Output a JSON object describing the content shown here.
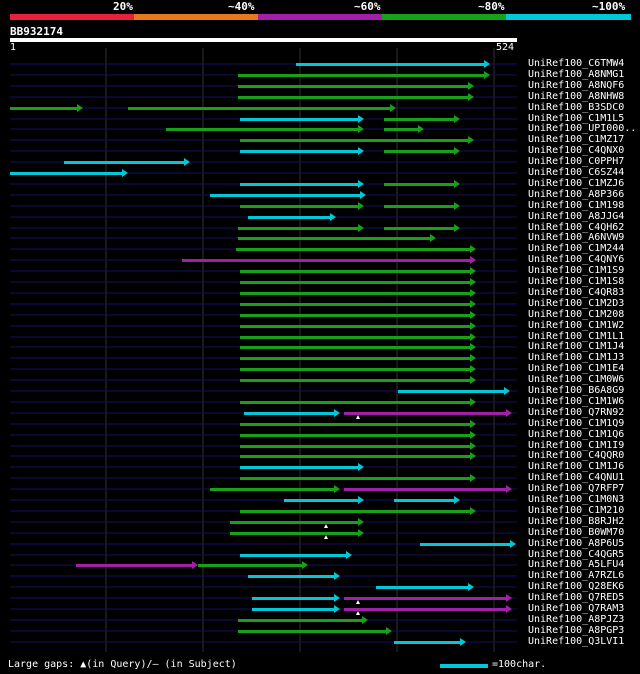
{
  "scale": {
    "labels": [
      "20%",
      "~40%",
      "~60%",
      "~80%",
      "~100%"
    ],
    "colors": [
      "#e8203c",
      "#e87820",
      "#a020a8",
      "#18a018",
      "#00c8d8"
    ]
  },
  "query": {
    "id": "BB932174",
    "start": "1",
    "end": "524"
  },
  "colors": {
    "cyan": "#00c8d8",
    "green": "#18a018",
    "magenta": "#a020a8",
    "grid": "#303030",
    "track": "#101060"
  },
  "hits": [
    {
      "label": "UniRef100_C6TMW4",
      "segs": [
        [
          296,
          490,
          "c"
        ]
      ]
    },
    {
      "label": "UniRef100_A8NMG1",
      "segs": [
        [
          238,
          490,
          "g"
        ]
      ]
    },
    {
      "label": "UniRef100_A8NQF6",
      "segs": [
        [
          238,
          474,
          "g"
        ]
      ]
    },
    {
      "label": "UniRef100_A8NHW8",
      "segs": [
        [
          238,
          474,
          "g"
        ]
      ]
    },
    {
      "label": "UniRef100_B3SDC0",
      "segs": [
        [
          10,
          83,
          "g"
        ],
        [
          128,
          396,
          "g"
        ]
      ]
    },
    {
      "label": "UniRef100_C1M1L5",
      "segs": [
        [
          240,
          364,
          "c"
        ],
        [
          384,
          460,
          "g"
        ]
      ]
    },
    {
      "label": "UniRef100_UPI000..",
      "segs": [
        [
          166,
          364,
          "g"
        ],
        [
          384,
          424,
          "g"
        ]
      ]
    },
    {
      "label": "UniRef100_C1MZ17",
      "segs": [
        [
          240,
          474,
          "g"
        ]
      ]
    },
    {
      "label": "UniRef100_C4QNX0",
      "segs": [
        [
          240,
          364,
          "c"
        ],
        [
          384,
          460,
          "g"
        ]
      ]
    },
    {
      "label": "UniRef100_C0PPH7",
      "segs": [
        [
          64,
          190,
          "c"
        ]
      ]
    },
    {
      "label": "UniRef100_C6SZ44",
      "segs": [
        [
          10,
          128,
          "c"
        ]
      ]
    },
    {
      "label": "UniRef100_C1MZJ6",
      "segs": [
        [
          240,
          364,
          "c"
        ],
        [
          384,
          460,
          "g"
        ]
      ]
    },
    {
      "label": "UniRef100_A8P366",
      "segs": [
        [
          210,
          366,
          "c"
        ]
      ]
    },
    {
      "label": "UniRef100_C1M198",
      "segs": [
        [
          240,
          364,
          "g"
        ],
        [
          384,
          460,
          "g"
        ]
      ]
    },
    {
      "label": "UniRef100_A8JJG4",
      "segs": [
        [
          248,
          336,
          "c"
        ]
      ]
    },
    {
      "label": "UniRef100_C4QH62",
      "segs": [
        [
          238,
          364,
          "g"
        ],
        [
          384,
          460,
          "g"
        ]
      ]
    },
    {
      "label": "UniRef100_A6NVW9",
      "segs": [
        [
          238,
          436,
          "g"
        ]
      ]
    },
    {
      "label": "UniRef100_C1M244",
      "segs": [
        [
          236,
          476,
          "g"
        ]
      ]
    },
    {
      "label": "UniRef100_C4QNY6",
      "segs": [
        [
          182,
          476,
          "m"
        ]
      ]
    },
    {
      "label": "UniRef100_C1M1S9",
      "segs": [
        [
          240,
          476,
          "g"
        ]
      ]
    },
    {
      "label": "UniRef100_C1M1S8",
      "segs": [
        [
          240,
          476,
          "g"
        ]
      ]
    },
    {
      "label": "UniRef100_C4QR83",
      "segs": [
        [
          240,
          476,
          "g"
        ]
      ]
    },
    {
      "label": "UniRef100_C1M2D3",
      "segs": [
        [
          240,
          476,
          "g"
        ]
      ]
    },
    {
      "label": "UniRef100_C1M208",
      "segs": [
        [
          240,
          476,
          "g"
        ]
      ]
    },
    {
      "label": "UniRef100_C1M1W2",
      "segs": [
        [
          240,
          476,
          "g"
        ]
      ]
    },
    {
      "label": "UniRef100_C1M1L1",
      "segs": [
        [
          240,
          476,
          "g"
        ]
      ]
    },
    {
      "label": "UniRef100_C1M1J4",
      "segs": [
        [
          240,
          476,
          "g"
        ]
      ]
    },
    {
      "label": "UniRef100_C1M1J3",
      "segs": [
        [
          240,
          476,
          "g"
        ]
      ]
    },
    {
      "label": "UniRef100_C1M1E4",
      "segs": [
        [
          240,
          476,
          "g"
        ]
      ]
    },
    {
      "label": "UniRef100_C1M0W6",
      "segs": [
        [
          240,
          476,
          "g"
        ]
      ]
    },
    {
      "label": "UniRef100_B6A8G9",
      "segs": [
        [
          398,
          510,
          "c"
        ]
      ]
    },
    {
      "label": "UniRef100_C1M1W6",
      "segs": [
        [
          240,
          476,
          "g"
        ]
      ]
    },
    {
      "label": "UniRef100_Q7RN92",
      "segs": [
        [
          244,
          340,
          "c"
        ],
        [
          344,
          512,
          "m"
        ]
      ],
      "gaps": [
        358
      ]
    },
    {
      "label": "UniRef100_C1M1Q9",
      "segs": [
        [
          240,
          476,
          "g"
        ]
      ]
    },
    {
      "label": "UniRef100_C1M1Q6",
      "segs": [
        [
          240,
          476,
          "g"
        ]
      ]
    },
    {
      "label": "UniRef100_C1M1I9",
      "segs": [
        [
          240,
          476,
          "g"
        ]
      ]
    },
    {
      "label": "UniRef100_C4QQR0",
      "segs": [
        [
          240,
          476,
          "g"
        ]
      ]
    },
    {
      "label": "UniRef100_C1M1J6",
      "segs": [
        [
          240,
          364,
          "c"
        ]
      ]
    },
    {
      "label": "UniRef100_C4QNU1",
      "segs": [
        [
          240,
          476,
          "g"
        ]
      ]
    },
    {
      "label": "UniRef100_Q7RFP7",
      "segs": [
        [
          210,
          340,
          "g"
        ],
        [
          344,
          512,
          "m"
        ]
      ]
    },
    {
      "label": "UniRef100_C1M0N3",
      "segs": [
        [
          284,
          364,
          "c"
        ],
        [
          394,
          460,
          "c"
        ]
      ]
    },
    {
      "label": "UniRef100_C1M210",
      "segs": [
        [
          240,
          476,
          "g"
        ]
      ]
    },
    {
      "label": "UniRef100_B8RJH2",
      "segs": [
        [
          230,
          364,
          "g"
        ]
      ],
      "gaps": [
        326
      ]
    },
    {
      "label": "UniRef100_B0WM70",
      "segs": [
        [
          230,
          364,
          "g"
        ]
      ],
      "gaps": [
        326
      ]
    },
    {
      "label": "UniRef100_A8P6U5",
      "segs": [
        [
          420,
          516,
          "c"
        ]
      ]
    },
    {
      "label": "UniRef100_C4QGR5",
      "segs": [
        [
          240,
          352,
          "c"
        ]
      ]
    },
    {
      "label": "UniRef100_A5LFU4",
      "segs": [
        [
          76,
          198,
          "m"
        ],
        [
          198,
          308,
          "g"
        ]
      ]
    },
    {
      "label": "UniRef100_A7RZL6",
      "segs": [
        [
          248,
          340,
          "c"
        ]
      ]
    },
    {
      "label": "UniRef100_Q28EK6",
      "segs": [
        [
          376,
          474,
          "c"
        ]
      ]
    },
    {
      "label": "UniRef100_Q7RED5",
      "segs": [
        [
          252,
          340,
          "c"
        ],
        [
          344,
          512,
          "m"
        ]
      ],
      "gaps": [
        358
      ]
    },
    {
      "label": "UniRef100_Q7RAM3",
      "segs": [
        [
          252,
          340,
          "c"
        ],
        [
          344,
          512,
          "m"
        ]
      ],
      "gaps": [
        358
      ]
    },
    {
      "label": "UniRef100_A8PJZ3",
      "segs": [
        [
          238,
          368,
          "g"
        ]
      ]
    },
    {
      "label": "UniRef100_A8PGP3",
      "segs": [
        [
          238,
          392,
          "g"
        ]
      ]
    },
    {
      "label": "UniRef100_Q3LVI1",
      "segs": [
        [
          394,
          466,
          "c"
        ]
      ]
    }
  ],
  "footer": {
    "gaps_text": "Large gaps: ▲(in Query)/– (in Subject)",
    "legend_text": "=100char."
  }
}
